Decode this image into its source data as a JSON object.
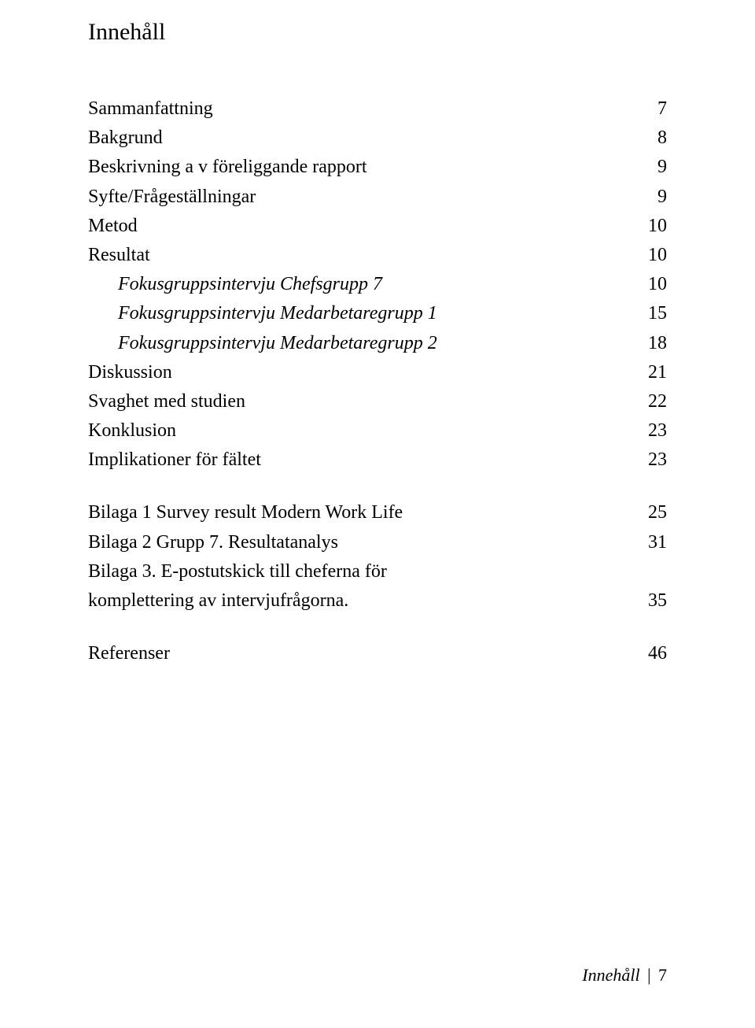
{
  "heading": "Innehåll",
  "toc": [
    {
      "label": "Sammanfattning",
      "page": "7",
      "indent": 0,
      "italic": false
    },
    {
      "label": "Bakgrund",
      "page": "8",
      "indent": 0,
      "italic": false
    },
    {
      "label": "Beskrivning a v föreliggande rapport",
      "page": "9",
      "indent": 0,
      "italic": false
    },
    {
      "label": "Syfte/Frågeställningar",
      "page": "9",
      "indent": 0,
      "italic": false
    },
    {
      "label": "Metod",
      "page": "10",
      "indent": 0,
      "italic": false
    },
    {
      "label": "Resultat",
      "page": "10",
      "indent": 0,
      "italic": false
    },
    {
      "label": "Fokusgruppsintervju Chefsgrupp 7",
      "page": "10",
      "indent": 1,
      "italic": true
    },
    {
      "label": "Fokusgruppsintervju Medarbetaregrupp 1",
      "page": "15",
      "indent": 1,
      "italic": true
    },
    {
      "label": "Fokusgruppsintervju Medarbetaregrupp 2",
      "page": "18",
      "indent": 1,
      "italic": true
    },
    {
      "label": "Diskussion",
      "page": "21",
      "indent": 0,
      "italic": false
    },
    {
      "label": "Svaghet med studien",
      "page": "22",
      "indent": 0,
      "italic": false
    },
    {
      "label": "Konklusion",
      "page": "23",
      "indent": 0,
      "italic": false
    },
    {
      "label": "Implikationer för fältet",
      "page": "23",
      "indent": 0,
      "italic": false
    }
  ],
  "toc2": [
    {
      "label": "Bilaga 1 Survey result Modern Work Life",
      "page": "25",
      "indent": 0,
      "italic": false
    },
    {
      "label": "Bilaga 2  Grupp 7. Resultatanalys",
      "page": "31",
      "indent": 0,
      "italic": false
    },
    {
      "label": "Bilaga 3. E-postutskick till cheferna för\nkomplettering av intervjufrågorna.",
      "page": "35",
      "indent": 0,
      "italic": false,
      "twoLine": true
    }
  ],
  "toc3": [
    {
      "label": "Referenser",
      "page": "46",
      "indent": 0,
      "italic": false
    }
  ],
  "footer": {
    "label": "Innehåll",
    "separator": "|",
    "page": "7"
  },
  "colors": {
    "text": "#000000",
    "background": "#ffffff"
  }
}
